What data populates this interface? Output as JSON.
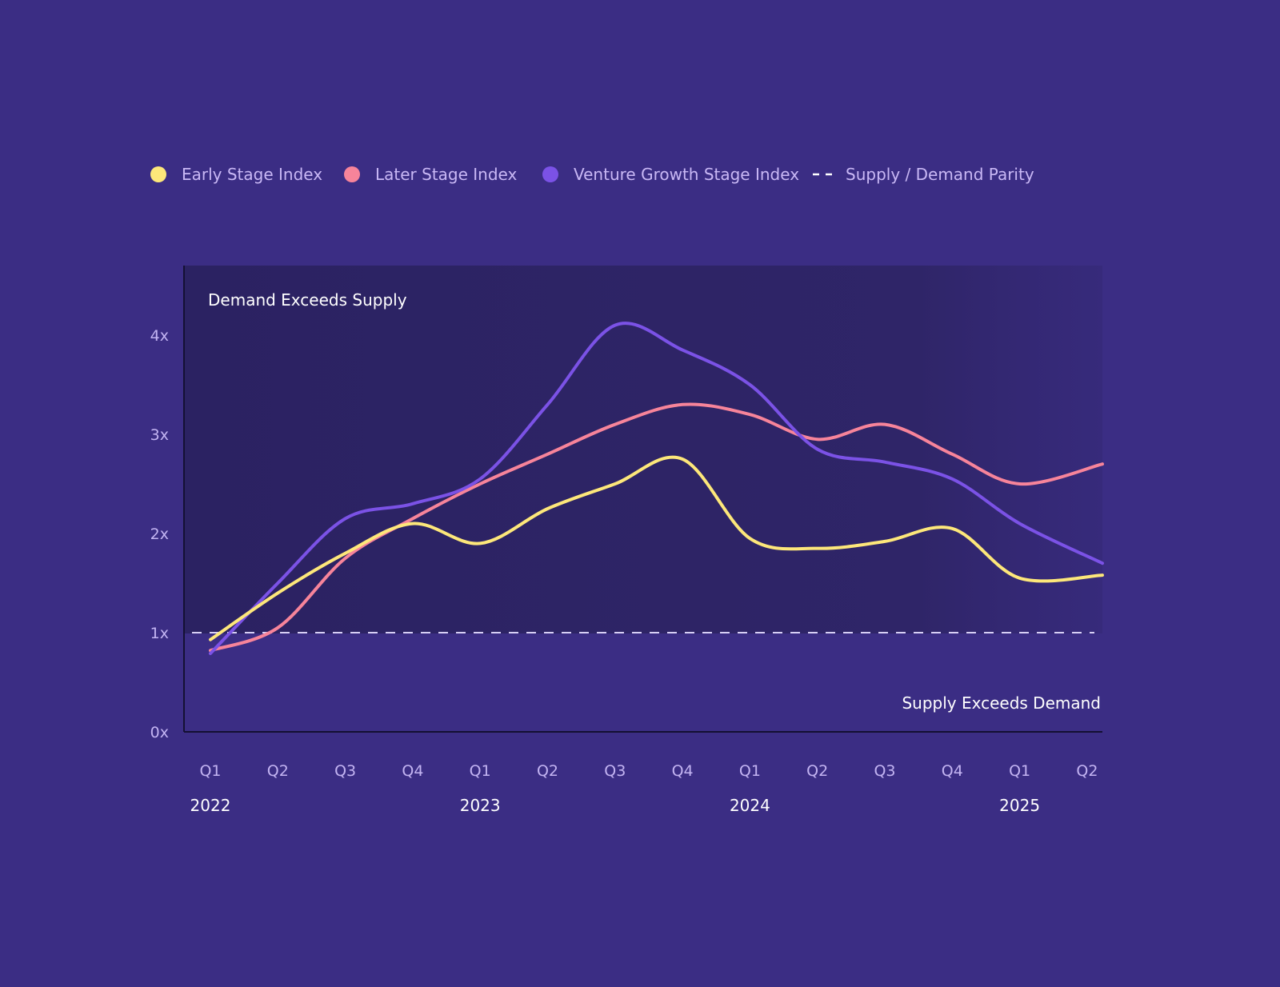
{
  "colors": {
    "background": "#3b2d84",
    "demand_zone": "#2f2568",
    "early_stage": "#fde77a",
    "later_stage": "#f7849a",
    "venture_growth": "#7b52e6",
    "parity_line": "#d7cff5"
  },
  "chart_data": {
    "type": "line",
    "legend_position": "top",
    "legend": [
      {
        "label": "Early Stage Index",
        "marker": "dot",
        "color": "#fde77a"
      },
      {
        "label": "Later Stage Index",
        "marker": "dot",
        "color": "#f7849a"
      },
      {
        "label": "Venture Growth Stage Index",
        "marker": "dot",
        "color": "#7b52e6"
      },
      {
        "label": "Supply / Demand Parity",
        "marker": "dash",
        "color": "#ffffff"
      }
    ],
    "annotations": {
      "top": "Demand Exceeds Supply",
      "bottom": "Supply Exceeds Demand"
    },
    "y_ticks": [
      {
        "value": 0,
        "label": "0x"
      },
      {
        "value": 1,
        "label": "1x"
      },
      {
        "value": 2,
        "label": "2x"
      },
      {
        "value": 3,
        "label": "3x"
      },
      {
        "value": 4,
        "label": "4x"
      }
    ],
    "ylim": [
      0,
      4.7
    ],
    "parity_value": 1,
    "x_tick_labels": [
      "Q1",
      "Q2",
      "Q3",
      "Q4",
      "Q1",
      "Q2",
      "Q3",
      "Q4",
      "Q1",
      "Q2",
      "Q3",
      "Q4",
      "Q1",
      "Q2"
    ],
    "years": [
      {
        "label": "2022",
        "quarter_index": 0
      },
      {
        "label": "2023",
        "quarter_index": 4
      },
      {
        "label": "2024",
        "quarter_index": 8
      },
      {
        "label": "2025",
        "quarter_index": 12
      }
    ],
    "grid": false,
    "series": [
      {
        "key": "early",
        "color": "#fde77a",
        "values": [
          0.93,
          1.4,
          1.8,
          2.1,
          1.9,
          2.25,
          2.5,
          2.75,
          1.95,
          1.85,
          1.92,
          2.05,
          1.55,
          1.58
        ]
      },
      {
        "key": "later",
        "color": "#f7849a",
        "values": [
          0.82,
          1.05,
          1.75,
          2.15,
          2.5,
          2.8,
          3.1,
          3.3,
          3.2,
          2.95,
          3.1,
          2.8,
          2.5,
          2.7
        ]
      },
      {
        "key": "venture",
        "color": "#7b52e6",
        "values": [
          0.79,
          1.5,
          2.15,
          2.3,
          2.55,
          3.3,
          4.1,
          3.85,
          3.5,
          2.85,
          2.72,
          2.55,
          2.1,
          1.7
        ]
      }
    ]
  }
}
